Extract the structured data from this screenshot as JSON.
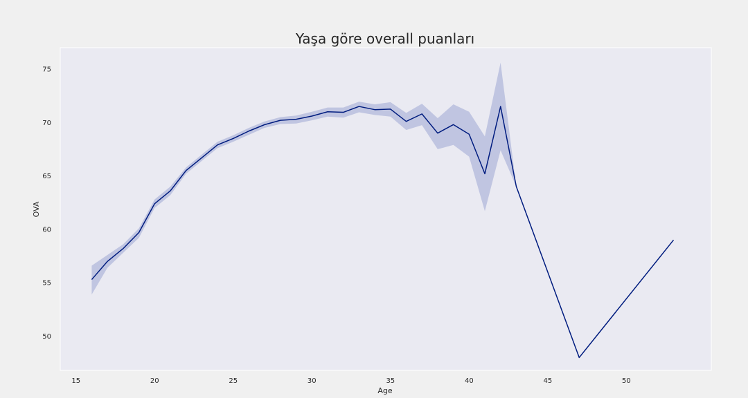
{
  "chart_data": {
    "type": "line",
    "title": "Yaşa göre overall puanları",
    "xlabel": "Age",
    "ylabel": "OVA",
    "xlim": [
      14.0,
      55.4
    ],
    "ylim": [
      46.8,
      77.0
    ],
    "xticks": [
      15,
      20,
      25,
      30,
      35,
      40,
      45,
      50
    ],
    "yticks": [
      50,
      55,
      60,
      65,
      70,
      75
    ],
    "grid": false,
    "colors": {
      "background": "#f0f0f0",
      "plot_area": "#eaeaf2",
      "line": "#001c7f",
      "band": "#b8bede"
    },
    "series": [
      {
        "x": [
          16,
          17,
          18,
          19,
          20,
          21,
          22,
          23,
          24,
          25,
          26,
          27,
          28,
          29,
          30,
          31,
          32,
          33,
          34,
          35,
          36,
          37,
          38,
          39,
          40,
          41,
          42,
          43,
          47,
          53
        ],
        "y": [
          55.3,
          57.0,
          58.2,
          59.7,
          62.4,
          63.6,
          65.5,
          66.7,
          67.9,
          68.5,
          69.2,
          69.8,
          70.2,
          70.3,
          70.6,
          71.0,
          70.95,
          71.5,
          71.2,
          71.25,
          70.1,
          70.8,
          69.0,
          69.8,
          68.9,
          65.2,
          71.5,
          64.0,
          48.0,
          59.0
        ],
        "y_lower": [
          53.9,
          56.4,
          57.8,
          59.2,
          62.0,
          63.2,
          65.2,
          66.4,
          67.6,
          68.2,
          68.85,
          69.5,
          69.85,
          69.9,
          70.2,
          70.55,
          70.45,
          70.95,
          70.7,
          70.55,
          69.3,
          69.75,
          67.5,
          67.9,
          66.8,
          61.7,
          67.4,
          64.0,
          48.0,
          59.0
        ],
        "y_upper": [
          56.6,
          57.6,
          58.6,
          60.1,
          62.8,
          64.0,
          65.8,
          67.0,
          68.2,
          68.8,
          69.5,
          70.1,
          70.5,
          70.65,
          71.0,
          71.4,
          71.4,
          71.95,
          71.7,
          71.9,
          70.9,
          71.75,
          70.4,
          71.7,
          71.0,
          68.7,
          75.6,
          64.0,
          48.0,
          59.0
        ]
      }
    ]
  }
}
